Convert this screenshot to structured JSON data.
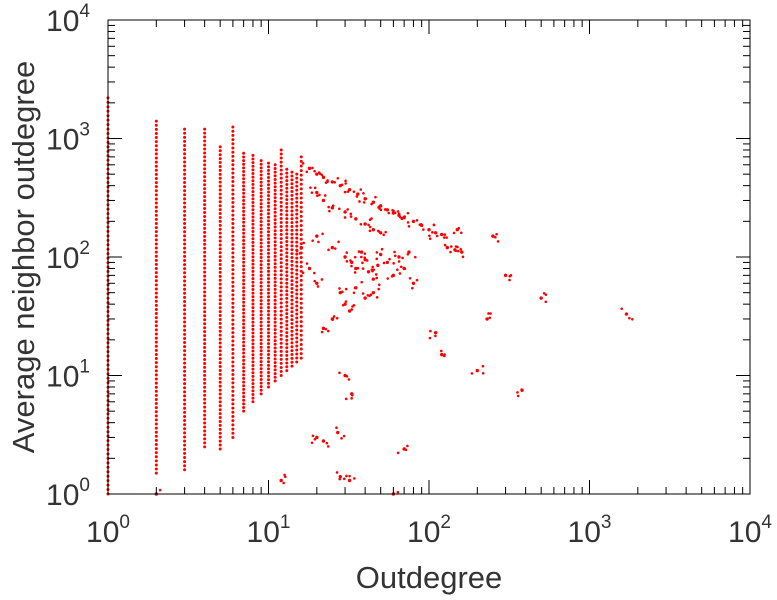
{
  "chart_data": {
    "type": "scatter",
    "title": "",
    "xlabel": "Outdegree",
    "ylabel": "Average neighbor outdegree",
    "x_scale": "log",
    "y_scale": "log",
    "xlim": [
      1,
      10000
    ],
    "ylim": [
      1,
      10000
    ],
    "grid": false,
    "legend": "none",
    "marker_color": "#ff0000",
    "x_ticks": [
      {
        "base": "10",
        "exp": "0",
        "value": 1
      },
      {
        "base": "10",
        "exp": "1",
        "value": 10
      },
      {
        "base": "10",
        "exp": "2",
        "value": 100
      },
      {
        "base": "10",
        "exp": "3",
        "value": 1000
      },
      {
        "base": "10",
        "exp": "4",
        "value": 10000
      }
    ],
    "y_ticks": [
      {
        "base": "10",
        "exp": "0",
        "value": 1
      },
      {
        "base": "10",
        "exp": "1",
        "value": 10
      },
      {
        "base": "10",
        "exp": "2",
        "value": 100
      },
      {
        "base": "10",
        "exp": "3",
        "value": 1000
      },
      {
        "base": "10",
        "exp": "4",
        "value": 10000
      }
    ],
    "columns": [
      {
        "x": 1,
        "ymin": 1,
        "ymax": 2200
      },
      {
        "x": 2,
        "ymin": 1.5,
        "ymax": 1400
      },
      {
        "x": 3,
        "ymin": 1.6,
        "ymax": 1200
      },
      {
        "x": 4,
        "ymin": 2.5,
        "ymax": 1200
      },
      {
        "x": 5,
        "ymin": 2.4,
        "ymax": 850
      },
      {
        "x": 6,
        "ymin": 3,
        "ymax": 1250
      },
      {
        "x": 7,
        "ymin": 5,
        "ymax": 750
      },
      {
        "x": 8,
        "ymin": 6,
        "ymax": 720
      },
      {
        "x": 9,
        "ymin": 7,
        "ymax": 650
      },
      {
        "x": 10,
        "ymin": 8,
        "ymax": 620
      },
      {
        "x": 11,
        "ymin": 9,
        "ymax": 600
      },
      {
        "x": 12,
        "ymin": 10,
        "ymax": 800
      },
      {
        "x": 13,
        "ymin": 11,
        "ymax": 550
      },
      {
        "x": 14,
        "ymin": 12,
        "ymax": 520
      },
      {
        "x": 15,
        "ymin": 13,
        "ymax": 500
      },
      {
        "x": 16,
        "ymin": 14,
        "ymax": 700
      }
    ],
    "points": [
      {
        "x": 18,
        "y": 560
      },
      {
        "x": 20,
        "y": 500
      },
      {
        "x": 22,
        "y": 470
      },
      {
        "x": 25,
        "y": 430
      },
      {
        "x": 28,
        "y": 400
      },
      {
        "x": 32,
        "y": 370
      },
      {
        "x": 36,
        "y": 340
      },
      {
        "x": 40,
        "y": 310
      },
      {
        "x": 45,
        "y": 290
      },
      {
        "x": 50,
        "y": 270
      },
      {
        "x": 55,
        "y": 250
      },
      {
        "x": 60,
        "y": 235
      },
      {
        "x": 65,
        "y": 225
      },
      {
        "x": 70,
        "y": 215
      },
      {
        "x": 80,
        "y": 200
      },
      {
        "x": 90,
        "y": 185
      },
      {
        "x": 100,
        "y": 170
      },
      {
        "x": 110,
        "y": 160
      },
      {
        "x": 120,
        "y": 155
      },
      {
        "x": 20,
        "y": 350
      },
      {
        "x": 22,
        "y": 300
      },
      {
        "x": 25,
        "y": 260
      },
      {
        "x": 30,
        "y": 240
      },
      {
        "x": 35,
        "y": 210
      },
      {
        "x": 40,
        "y": 190
      },
      {
        "x": 45,
        "y": 170
      },
      {
        "x": 50,
        "y": 160
      },
      {
        "x": 25,
        "y": 120
      },
      {
        "x": 30,
        "y": 100
      },
      {
        "x": 33,
        "y": 90
      },
      {
        "x": 35,
        "y": 80
      },
      {
        "x": 38,
        "y": 110
      },
      {
        "x": 40,
        "y": 95
      },
      {
        "x": 42,
        "y": 75
      },
      {
        "x": 45,
        "y": 65
      },
      {
        "x": 48,
        "y": 85
      },
      {
        "x": 50,
        "y": 105
      },
      {
        "x": 55,
        "y": 90
      },
      {
        "x": 60,
        "y": 70
      },
      {
        "x": 65,
        "y": 100
      },
      {
        "x": 70,
        "y": 80
      },
      {
        "x": 75,
        "y": 110
      },
      {
        "x": 80,
        "y": 60
      },
      {
        "x": 28,
        "y": 50
      },
      {
        "x": 30,
        "y": 40
      },
      {
        "x": 32,
        "y": 35
      },
      {
        "x": 35,
        "y": 55
      },
      {
        "x": 40,
        "y": 45
      },
      {
        "x": 45,
        "y": 50
      },
      {
        "x": 25,
        "y": 30
      },
      {
        "x": 22,
        "y": 25
      },
      {
        "x": 20,
        "y": 60
      },
      {
        "x": 18,
        "y": 80
      },
      {
        "x": 16,
        "y": 120
      },
      {
        "x": 20,
        "y": 150
      },
      {
        "x": 130,
        "y": 120
      },
      {
        "x": 145,
        "y": 115
      },
      {
        "x": 160,
        "y": 110
      },
      {
        "x": 150,
        "y": 170
      },
      {
        "x": 250,
        "y": 150
      },
      {
        "x": 300,
        "y": 70
      },
      {
        "x": 500,
        "y": 45
      },
      {
        "x": 1700,
        "y": 33
      },
      {
        "x": 200,
        "y": 11
      },
      {
        "x": 380,
        "y": 7.5
      },
      {
        "x": 110,
        "y": 23
      },
      {
        "x": 120,
        "y": 15
      },
      {
        "x": 230,
        "y": 30
      },
      {
        "x": 30,
        "y": 10
      },
      {
        "x": 33,
        "y": 7
      },
      {
        "x": 20,
        "y": 3
      },
      {
        "x": 22,
        "y": 2.8
      },
      {
        "x": 27,
        "y": 3.3
      },
      {
        "x": 70,
        "y": 2.4
      },
      {
        "x": 28,
        "y": 1.4
      },
      {
        "x": 32,
        "y": 1.3
      },
      {
        "x": 12,
        "y": 1.3
      },
      {
        "x": 60,
        "y": 1
      },
      {
        "x": 2,
        "y": 1
      }
    ]
  }
}
